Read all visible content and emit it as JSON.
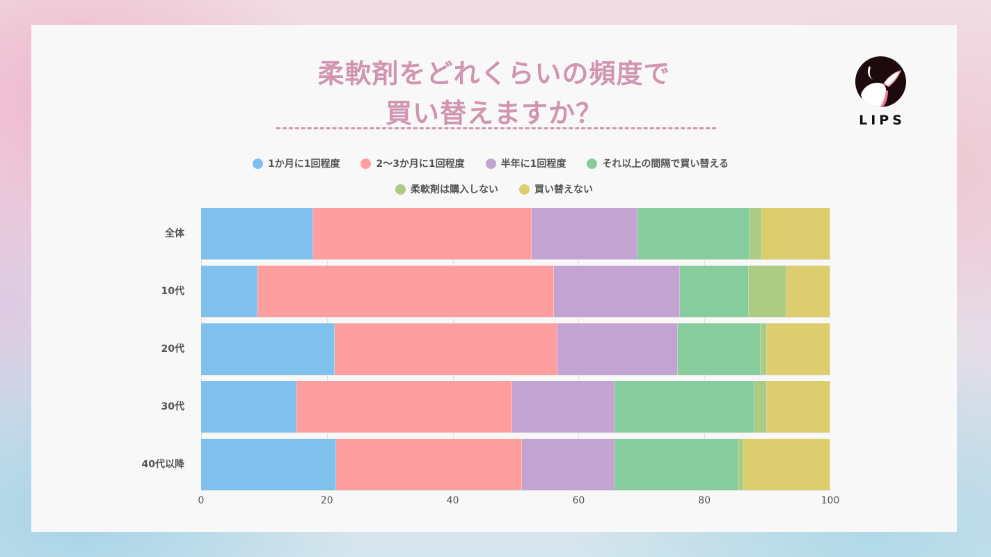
{
  "title": {
    "line1": "柔軟剤をどれくらいの頻度で",
    "line2": "買い替えますか？"
  },
  "logo": {
    "text": "LIPS",
    "icon": "deer-icon"
  },
  "colors": {
    "title": "#d195b1",
    "series": [
      "#7fc0ed",
      "#ff9e9e",
      "#c3a3d1",
      "#87cc9c",
      "#aecb84",
      "#dccd6e"
    ]
  },
  "legend": [
    {
      "label": "1か月に1回程度",
      "color": "#7fc0ed"
    },
    {
      "label": "2〜3か月に1回程度",
      "color": "#ff9e9e"
    },
    {
      "label": "半年に1回程度",
      "color": "#c3a3d1"
    },
    {
      "label": "それ以上の間隔で買い替える",
      "color": "#87cc9c"
    },
    {
      "label": "柔軟剤は購入しない",
      "color": "#aecb84"
    },
    {
      "label": "買い替えない",
      "color": "#dccd6e"
    }
  ],
  "chart_data": {
    "type": "bar",
    "orientation": "horizontal",
    "stacked": true,
    "title": "柔軟剤をどれくらいの頻度で買い替えますか？",
    "xlabel": "",
    "ylabel": "",
    "xlim": [
      0,
      100
    ],
    "x_ticks": [
      "0",
      "20",
      "40",
      "60",
      "80",
      "100"
    ],
    "grid": true,
    "legend_position": "top",
    "categories": [
      "全体",
      "10代",
      "20代",
      "30代",
      "40代以降"
    ],
    "series": [
      {
        "name": "1か月に1回程度",
        "color": "#7fc0ed",
        "values": [
          17.8,
          9.0,
          21.2,
          15.2,
          21.5
        ]
      },
      {
        "name": "2〜3か月に1回程度",
        "color": "#ff9e9e",
        "values": [
          34.7,
          47.1,
          35.4,
          34.3,
          29.5
        ]
      },
      {
        "name": "半年に1回程度",
        "color": "#c3a3d1",
        "values": [
          16.9,
          20.0,
          19.2,
          16.2,
          14.7
        ]
      },
      {
        "name": "それ以上の間隔で買い替える",
        "color": "#87cc9c",
        "values": [
          17.8,
          11.0,
          13.1,
          22.2,
          19.7
        ]
      },
      {
        "name": "柔軟剤は購入しない",
        "color": "#aecb84",
        "values": [
          2.0,
          5.9,
          1.0,
          2.0,
          0.9
        ]
      },
      {
        "name": "買い替えない",
        "color": "#dccd6e",
        "values": [
          10.8,
          7.0,
          10.1,
          10.1,
          13.7
        ]
      }
    ]
  }
}
